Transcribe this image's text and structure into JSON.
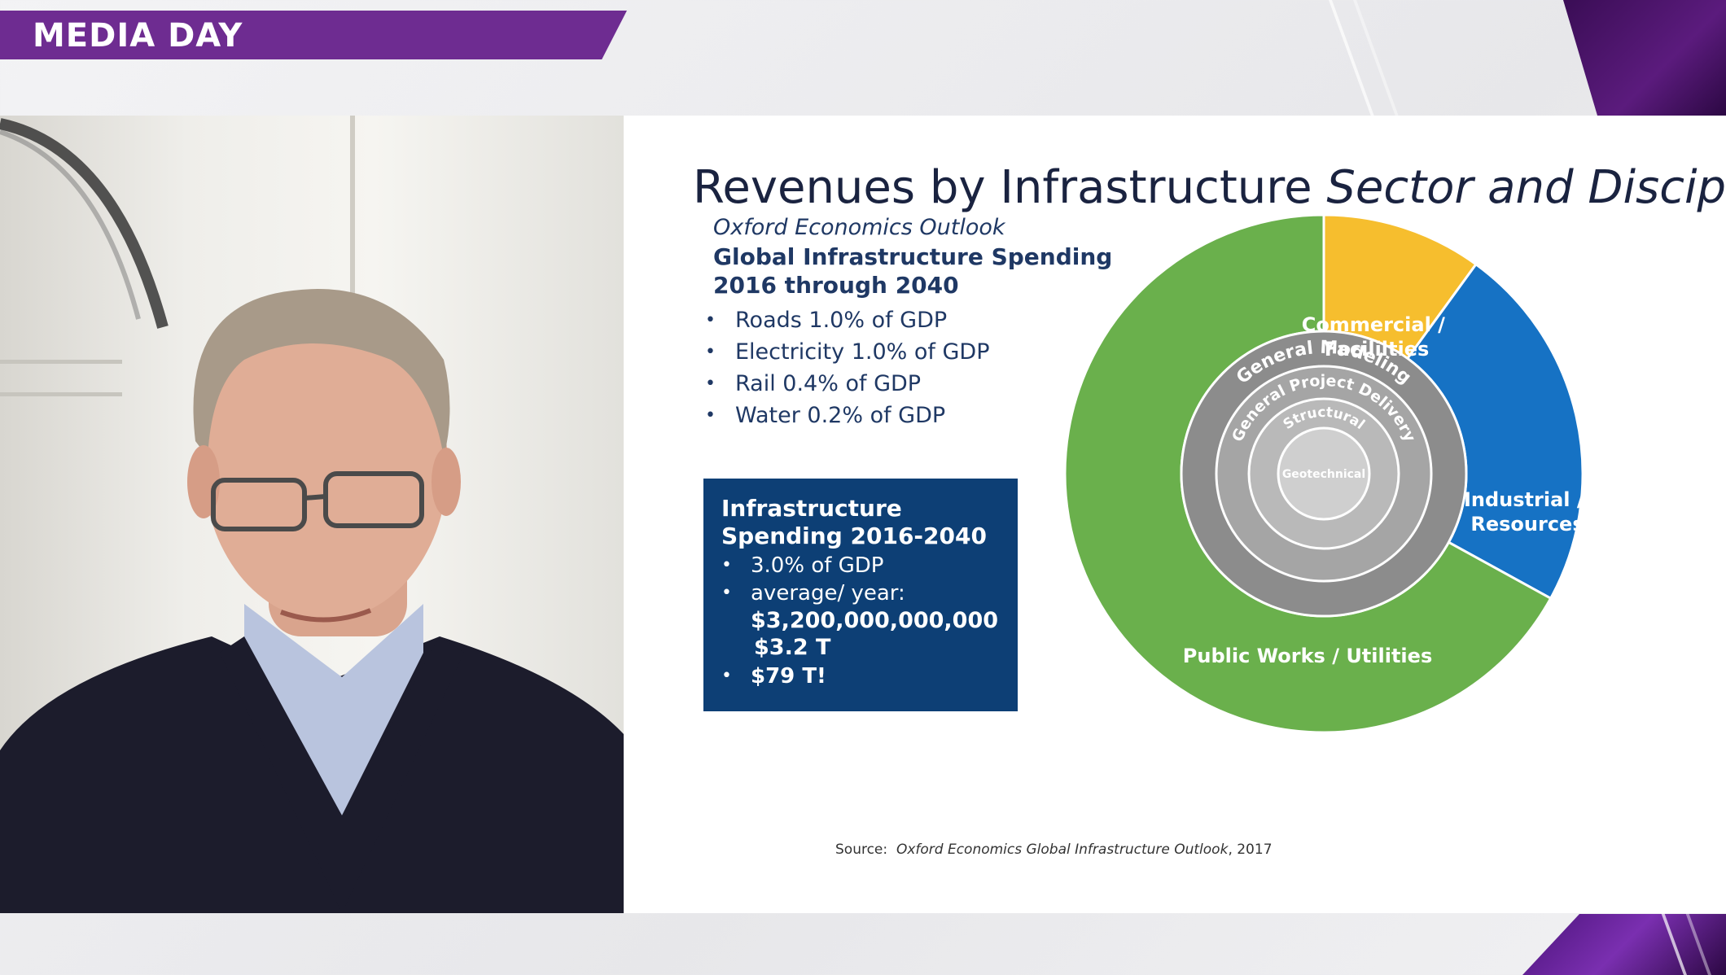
{
  "banner": {
    "label": "MEDIA DAY"
  },
  "slide": {
    "title_plain": "Revenues by Infrastructure ",
    "title_italic": "Sector and Discipline",
    "subtitle": "Oxford Economics Outlook",
    "section_title": "Global Infrastructure Spending 2016 through 2040",
    "bullets": [
      "Roads 1.0% of GDP",
      "Electricity 1.0% of GDP",
      "Rail 0.4% of GDP",
      "Water 0.2% of GDP"
    ],
    "box": {
      "title": "Infrastructure Spending 2016-2040",
      "item1": "3.0% of GDP",
      "item2": "average/ year:",
      "amount": "$3,200,000,000,000",
      "amount_short": "$3.2 T",
      "item3": "$79 T!"
    },
    "source_label": "Source:",
    "source_text": "Oxford Economics Global Infrastructure Outlook",
    "source_year": ", 2017"
  },
  "chart_data": {
    "type": "pie",
    "outer_ring": [
      {
        "label": "Commercial / Facililties",
        "share": 0.1,
        "color": "#f6be2e"
      },
      {
        "label": "Industrial / Resources",
        "share": 0.23,
        "color": "#1672c4"
      },
      {
        "label": "Public Works / Utilities",
        "share": 0.67,
        "color": "#6ab04c"
      }
    ],
    "inner_rings": [
      {
        "label": "General Modeling",
        "color": "#8c8c8c"
      },
      {
        "label": "General Project Delivery",
        "color": "#a5a5a5"
      },
      {
        "label": "Structural",
        "color": "#b9b9b9"
      },
      {
        "label": "Geotechnical",
        "color": "#cfcfcf"
      }
    ]
  }
}
